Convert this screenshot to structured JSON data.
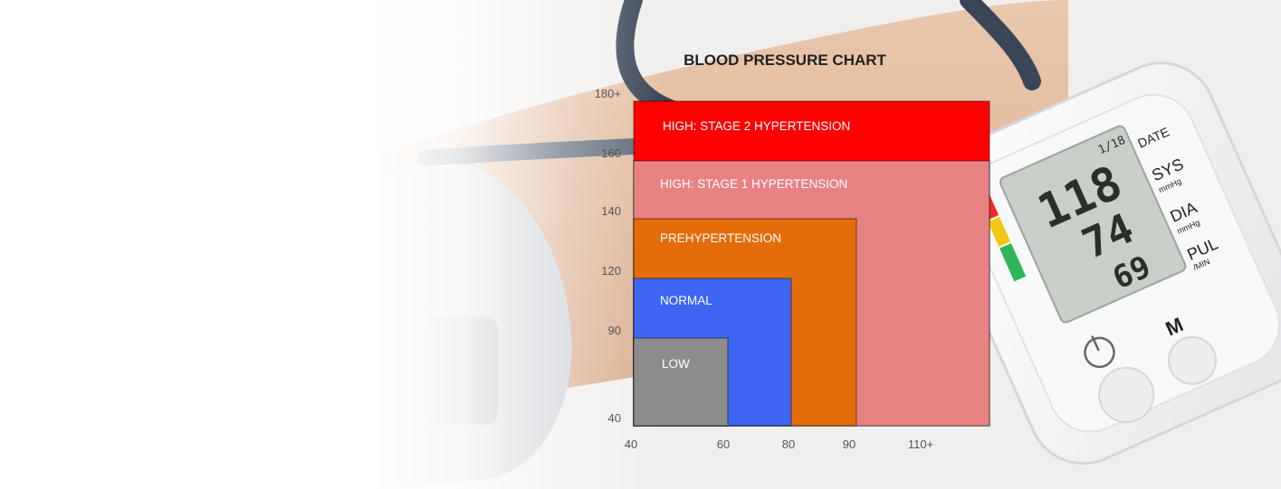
{
  "chart_data": {
    "type": "nested-area",
    "title": "BLOOD PRESSURE CHART",
    "xlabel": "",
    "ylabel": "",
    "x_ticks": [
      "40",
      "60",
      "80",
      "90",
      "110+"
    ],
    "y_ticks": [
      "40",
      "90",
      "120",
      "140",
      "160",
      "180+"
    ],
    "categories": [
      {
        "label": "HIGH: STAGE 2 HYPERTENSION",
        "x_max": "110+",
        "y_max": "180+",
        "color": "#ff0000"
      },
      {
        "label": "HIGH: STAGE 1 HYPERTENSION",
        "x_max": "110+",
        "y_max": "160",
        "color": "#e88282"
      },
      {
        "label": "PREHYPERTENSION",
        "x_max": "90",
        "y_max": "140",
        "color": "#e46c0a"
      },
      {
        "label": "NORMAL",
        "x_max": "80",
        "y_max": "120",
        "color": "#3c66f2"
      },
      {
        "label": "LOW",
        "x_max": "60",
        "y_max": "90",
        "color": "#8c8c8c"
      }
    ],
    "grid": false,
    "legend": "none"
  },
  "device": {
    "date": "1/18",
    "sys": "118",
    "dia": "74",
    "pul": "69",
    "labels": {
      "date": "DATE",
      "sys": "SYS",
      "sys_unit": "mmHg",
      "dia": "DIA",
      "dia_unit": "mmHg",
      "pul": "PUL",
      "pul_unit": "/MIN",
      "m_button": "M"
    }
  }
}
